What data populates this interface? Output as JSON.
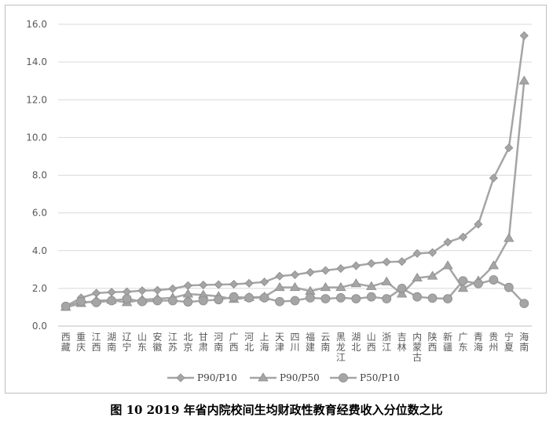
{
  "caption": "图 10 2019 年省内院校间生均财政性教育经费收入分位数之比",
  "chart_data": {
    "type": "line",
    "categories": [
      "西藏",
      "重庆",
      "江西",
      "湖南",
      "辽宁",
      "山东",
      "安徽",
      "江苏",
      "北京",
      "甘肃",
      "河南",
      "广西",
      "河北",
      "上海",
      "天津",
      "四川",
      "福建",
      "云南",
      "黑龙江",
      "湖北",
      "山西",
      "浙江",
      "吉林",
      "内蒙古",
      "陕西",
      "新疆",
      "广东",
      "青海",
      "贵州",
      "宁夏",
      "海南"
    ],
    "series": [
      {
        "name": "P90/P10",
        "marker": "diamond",
        "color": "#a5a5a5",
        "values": [
          1.05,
          1.5,
          1.75,
          1.8,
          1.82,
          1.88,
          1.9,
          1.98,
          2.15,
          2.18,
          2.2,
          2.22,
          2.27,
          2.34,
          2.65,
          2.72,
          2.85,
          2.95,
          3.05,
          3.2,
          3.32,
          3.4,
          3.42,
          3.85,
          3.9,
          4.45,
          4.72,
          5.4,
          7.85,
          9.45,
          15.4
        ]
      },
      {
        "name": "P90/P50",
        "marker": "triangle",
        "color": "#a5a5a5",
        "values": [
          1.0,
          1.2,
          1.35,
          1.38,
          1.25,
          1.4,
          1.45,
          1.5,
          1.7,
          1.65,
          1.58,
          1.42,
          1.52,
          1.55,
          2.05,
          2.05,
          1.85,
          2.05,
          2.05,
          2.25,
          2.1,
          2.35,
          1.7,
          2.55,
          2.65,
          3.2,
          2.0,
          2.4,
          3.2,
          4.65,
          13.0
        ]
      },
      {
        "name": "P50/P10",
        "marker": "circle",
        "color": "#a5a5a5",
        "values": [
          1.05,
          1.3,
          1.25,
          1.35,
          1.45,
          1.3,
          1.35,
          1.35,
          1.28,
          1.35,
          1.4,
          1.55,
          1.5,
          1.5,
          1.3,
          1.35,
          1.5,
          1.45,
          1.5,
          1.45,
          1.55,
          1.45,
          2.0,
          1.55,
          1.48,
          1.45,
          2.4,
          2.25,
          2.45,
          2.05,
          1.2
        ]
      }
    ],
    "yticks": [
      "0.0",
      "2.0",
      "4.0",
      "6.0",
      "8.0",
      "10.0",
      "12.0",
      "14.0",
      "16.0"
    ],
    "ylim": [
      0,
      16
    ],
    "grid": true,
    "legend": "bottom"
  }
}
